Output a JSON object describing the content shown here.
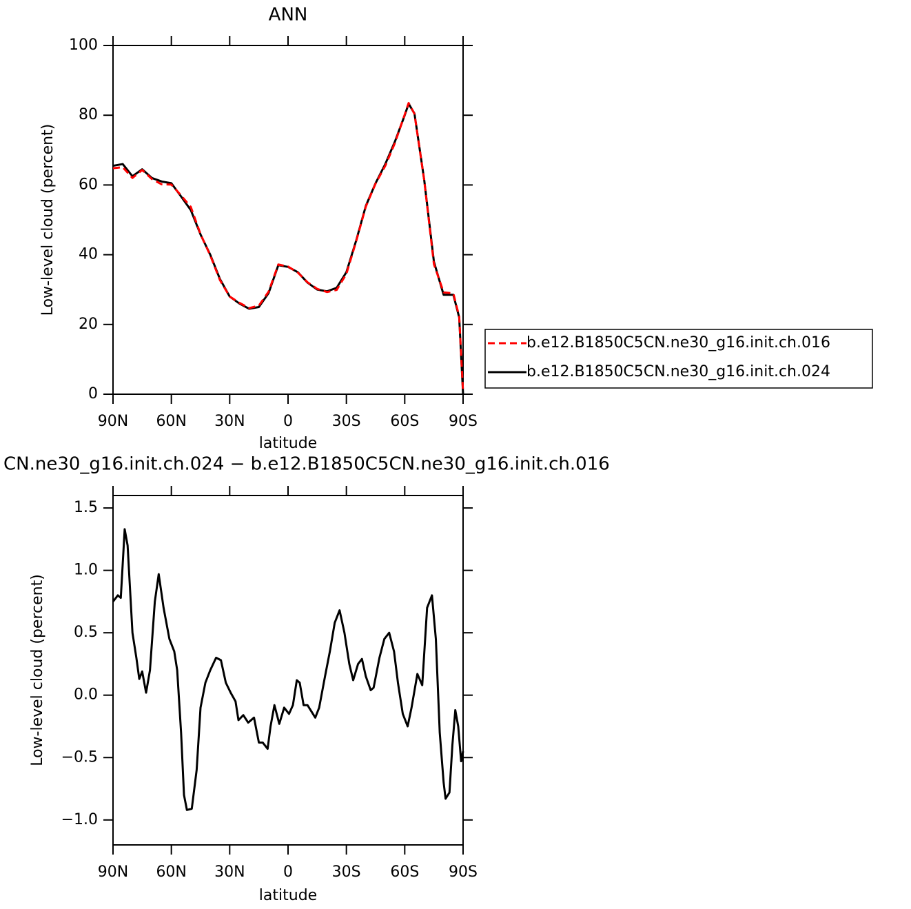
{
  "chart_data": [
    {
      "type": "line",
      "title": "ANN",
      "xlabel": "latitude",
      "ylabel": "Low-level cloud (percent)",
      "x": [
        90,
        85,
        80,
        75,
        70,
        65,
        60,
        55,
        50,
        45,
        40,
        35,
        30,
        25,
        20,
        15,
        10,
        5,
        0,
        -5,
        -10,
        -15,
        -20,
        -25,
        -30,
        -35,
        -40,
        -45,
        -50,
        -55,
        -60,
        -62,
        -65,
        -70,
        -75,
        -80,
        -85,
        -88,
        -90
      ],
      "xlim": [
        90,
        -90
      ],
      "xticks": [
        {
          "value": 90,
          "label": "90N"
        },
        {
          "value": 60,
          "label": "60N"
        },
        {
          "value": 30,
          "label": "30N"
        },
        0,
        {
          "value": -30,
          "label": "30S"
        },
        {
          "value": -60,
          "label": "60S"
        },
        {
          "value": -90,
          "label": "90S"
        }
      ],
      "ylim": [
        0,
        100
      ],
      "yticks": [
        0,
        20,
        40,
        60,
        80,
        100
      ],
      "series": [
        {
          "name": "b.e12.B1850C5CN.ne30_g16.init.ch.016",
          "color": "#ff0000",
          "dashed": true,
          "values": [
            64.8,
            65.1,
            62,
            64.3,
            61.7,
            60.2,
            60.1,
            57,
            53.7,
            45.9,
            39.8,
            32.7,
            28,
            26.2,
            24.7,
            25.4,
            29.4,
            37.2,
            36.6,
            34.9,
            32.1,
            30.2,
            29.3,
            29.9,
            34.5,
            43.8,
            53.8,
            60.4,
            65.5,
            72.1,
            80.2,
            83.5,
            80.4,
            61.4,
            37.3,
            29.2,
            28.9,
            22.3,
            0.4
          ]
        },
        {
          "name": "b.e12.B1850C5CN.ne30_g16.init.ch.024",
          "color": "#000000",
          "dashed": false,
          "values": [
            65.5,
            66,
            62.5,
            64.5,
            62,
            61,
            60.5,
            56.7,
            52.8,
            45.8,
            40,
            33,
            28,
            26,
            24.5,
            25,
            29,
            37,
            36.5,
            35,
            32,
            30,
            29.5,
            30.5,
            35,
            44,
            54,
            60.5,
            66,
            72.5,
            80,
            83.3,
            80.5,
            61.5,
            38,
            28.5,
            28.5,
            22,
            0
          ]
        }
      ]
    },
    {
      "type": "line",
      "title": "CN.ne30_g16.init.ch.024 − b.e12.B1850C5CN.ne30_g16.init.ch.016",
      "xlabel": "latitude",
      "ylabel": "Low-level cloud (percent)",
      "x": [
        90,
        87.5,
        86,
        84,
        82.5,
        80,
        78,
        76.5,
        75,
        73,
        71,
        68.5,
        66.5,
        64,
        61,
        58.5,
        57,
        55,
        53.5,
        52,
        49.5,
        47,
        45,
        42.5,
        40,
        37,
        34.5,
        32,
        29.5,
        27,
        25.5,
        23,
        20.5,
        17.5,
        15,
        13,
        10.5,
        9,
        7,
        4.5,
        2,
        -0.5,
        -2.5,
        -4.5,
        -6,
        -8,
        -10,
        -14,
        -16,
        -19,
        -21.5,
        -24,
        -26.5,
        -29,
        -31.5,
        -33.5,
        -36,
        -38,
        -40,
        -42.5,
        -44,
        -47,
        -49.5,
        -52,
        -54.5,
        -56.5,
        -59,
        -61.5,
        -63.5,
        -66.5,
        -69,
        -71.5,
        -74,
        -76,
        -78,
        -80,
        -81,
        -83,
        -84.5,
        -86,
        -87.5,
        -89,
        -90
      ],
      "xlim": [
        90,
        -90
      ],
      "xticks": [
        {
          "value": 90,
          "label": "90N"
        },
        {
          "value": 60,
          "label": "60N"
        },
        {
          "value": 30,
          "label": "30N"
        },
        0,
        {
          "value": -30,
          "label": "30S"
        },
        {
          "value": -60,
          "label": "60S"
        },
        {
          "value": -90,
          "label": "90S"
        }
      ],
      "ylim": [
        -1.2,
        1.6
      ],
      "yticks": [
        {
          "value": -1,
          "label": "−1.0"
        },
        {
          "value": -0.5,
          "label": "−0.5"
        },
        {
          "value": 0,
          "label": "0.0"
        },
        0.5,
        {
          "value": 1,
          "label": "1.0"
        },
        1.5
      ],
      "series": [
        {
          "color": "#000000",
          "dashed": false,
          "values": [
            0.75,
            0.8,
            0.78,
            1.33,
            1.2,
            0.5,
            0.3,
            0.13,
            0.19,
            0.02,
            0.2,
            0.75,
            0.97,
            0.7,
            0.45,
            0.35,
            0.2,
            -0.3,
            -0.8,
            -0.92,
            -0.91,
            -0.6,
            -0.1,
            0.1,
            0.2,
            0.3,
            0.28,
            0.1,
            0.02,
            -0.05,
            -0.2,
            -0.16,
            -0.22,
            -0.18,
            -0.38,
            -0.38,
            -0.43,
            -0.25,
            -0.08,
            -0.23,
            -0.1,
            -0.15,
            -0.08,
            0.12,
            0.1,
            -0.08,
            -0.08,
            -0.18,
            -0.1,
            0.15,
            0.35,
            0.58,
            0.68,
            0.5,
            0.25,
            0.12,
            0.25,
            0.29,
            0.15,
            0.04,
            0.06,
            0.3,
            0.45,
            0.5,
            0.35,
            0.1,
            -0.15,
            -0.25,
            -0.1,
            0.17,
            0.08,
            0.7,
            0.8,
            0.45,
            -0.3,
            -0.7,
            -0.83,
            -0.78,
            -0.4,
            -0.12,
            -0.25,
            -0.53,
            -0.45
          ]
        }
      ]
    }
  ]
}
